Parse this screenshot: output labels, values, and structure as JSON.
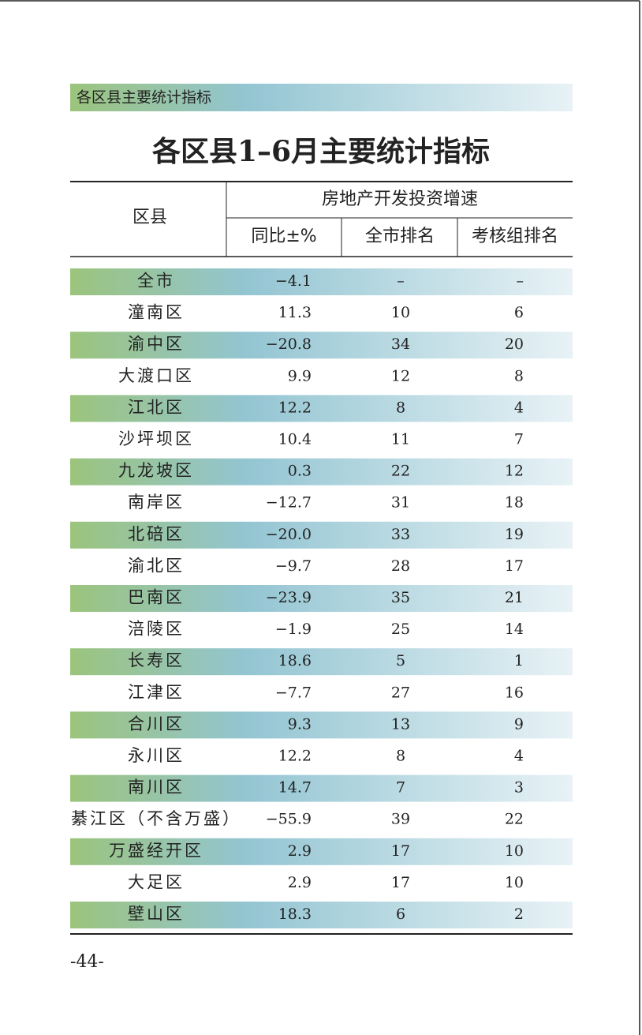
{
  "header": {
    "section": "各区县主要统计指标",
    "title": "各区县1–6月主要统计指标"
  },
  "table": {
    "columns": {
      "district": "区县",
      "group": "房地产开发投资增速",
      "sub": [
        "同比±%",
        "全市排名",
        "考核组排名"
      ]
    },
    "rows": [
      [
        "全市",
        "−4.1",
        "–",
        "–"
      ],
      [
        "潼南区",
        "11.3",
        "10",
        "6"
      ],
      [
        "渝中区",
        "−20.8",
        "34",
        "20"
      ],
      [
        "大渡口区",
        "9.9",
        "12",
        "8"
      ],
      [
        "江北区",
        "12.2",
        "8",
        "4"
      ],
      [
        "沙坪坝区",
        "10.4",
        "11",
        "7"
      ],
      [
        "九龙坡区",
        "0.3",
        "22",
        "12"
      ],
      [
        "南岸区",
        "−12.7",
        "31",
        "18"
      ],
      [
        "北碚区",
        "−20.0",
        "33",
        "19"
      ],
      [
        "渝北区",
        "−9.7",
        "28",
        "17"
      ],
      [
        "巴南区",
        "−23.9",
        "35",
        "21"
      ],
      [
        "涪陵区",
        "−1.9",
        "25",
        "14"
      ],
      [
        "长寿区",
        "18.6",
        "5",
        "1"
      ],
      [
        "江津区",
        "−7.7",
        "27",
        "16"
      ],
      [
        "合川区",
        "9.3",
        "13",
        "9"
      ],
      [
        "永川区",
        "12.2",
        "8",
        "4"
      ],
      [
        "南川区",
        "14.7",
        "7",
        "3"
      ],
      [
        "綦江区（不含万盛）",
        "−55.9",
        "39",
        "22"
      ],
      [
        "万盛经开区",
        "2.9",
        "17",
        "10"
      ],
      [
        "大足区",
        "2.9",
        "17",
        "10"
      ],
      [
        "壁山区",
        "18.3",
        "6",
        "2"
      ]
    ]
  },
  "footer": {
    "page_number": "-44-"
  }
}
